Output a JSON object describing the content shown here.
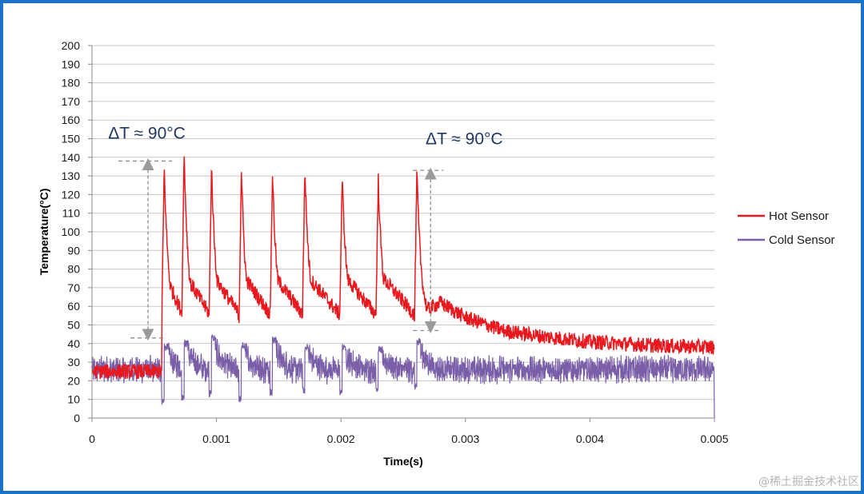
{
  "chart_data": {
    "type": "line",
    "title": "",
    "xlabel": "Time(s)",
    "ylabel": "Temperature(°C)",
    "xlim": [
      0,
      0.005
    ],
    "ylim": [
      0,
      200
    ],
    "grid": true,
    "legend_position": "right",
    "x_tick_labels": [
      "0",
      "0.001",
      "0.002",
      "0.003",
      "0.004",
      "0.005"
    ],
    "y_ticks": [
      0,
      10,
      20,
      30,
      40,
      50,
      60,
      70,
      80,
      90,
      100,
      110,
      120,
      130,
      140,
      150,
      160,
      170,
      180,
      190,
      200
    ],
    "series": [
      {
        "name": "Hot Sensor",
        "color": "#e8191e",
        "baseline": [
          [
            0,
            25
          ],
          [
            0.00055,
            26
          ],
          [
            0.0026,
            55
          ],
          [
            0.0028,
            62
          ],
          [
            0.003,
            54
          ],
          [
            0.0033,
            47
          ],
          [
            0.0036,
            44
          ],
          [
            0.004,
            41
          ],
          [
            0.0045,
            39
          ],
          [
            0.005,
            38
          ]
        ],
        "pulses": [
          {
            "t": 0.00058,
            "peak": 135,
            "min": 50
          },
          {
            "t": 0.00074,
            "peak": 143,
            "min": 49
          },
          {
            "t": 0.00096,
            "peak": 136,
            "min": 51
          },
          {
            "t": 0.0012,
            "peak": 134,
            "min": 47
          },
          {
            "t": 0.00145,
            "peak": 132,
            "min": 50
          },
          {
            "t": 0.00171,
            "peak": 134,
            "min": 53
          },
          {
            "t": 0.00201,
            "peak": 129,
            "min": 54
          },
          {
            "t": 0.0023,
            "peak": 128,
            "min": 52
          },
          {
            "t": 0.00261,
            "peak": 132,
            "min": 51
          }
        ],
        "noise_amplitude": 4
      },
      {
        "name": "Cold Sensor",
        "color": "#7a5fa8",
        "baseline_mean": 26,
        "noise_amplitude": 6,
        "spikes": [
          {
            "t": 0.00058,
            "peak": 40,
            "min": 7
          },
          {
            "t": 0.00074,
            "peak": 42,
            "min": 9
          },
          {
            "t": 0.00096,
            "peak": 45,
            "min": 11
          },
          {
            "t": 0.0012,
            "peak": 41,
            "min": 8
          },
          {
            "t": 0.00145,
            "peak": 44,
            "min": 12
          },
          {
            "t": 0.00171,
            "peak": 40,
            "min": 13
          },
          {
            "t": 0.00201,
            "peak": 40,
            "min": 12
          },
          {
            "t": 0.0023,
            "peak": 39,
            "min": 14
          },
          {
            "t": 0.00261,
            "peak": 43,
            "min": 15
          }
        ],
        "end_drop": 0
      }
    ],
    "annotations": [
      {
        "text": "ΔT ≈ 90°C",
        "x_from": 0.00045,
        "y_top": 138,
        "y_bottom": 43,
        "text_at": [
          0.00013,
          150
        ]
      },
      {
        "text": "ΔT ≈ 90°C",
        "x_from": 0.00272,
        "y_top": 133,
        "y_bottom": 47,
        "text_at": [
          0.00268,
          147
        ]
      }
    ]
  },
  "legend": {
    "hot_label": "Hot Sensor",
    "cold_label": "Cold Sensor",
    "hot_color": "#e8191e",
    "cold_color": "#7a5fa8"
  },
  "watermark": "@稀土掘金技术社区"
}
